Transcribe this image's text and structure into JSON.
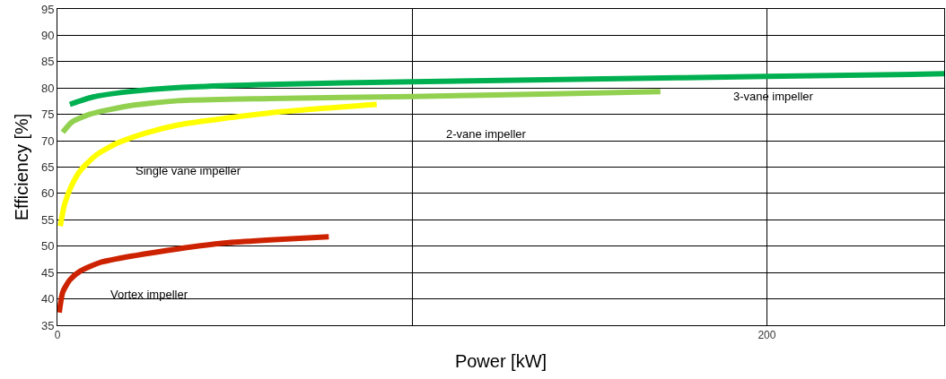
{
  "chart_data": {
    "type": "line",
    "xlabel": "Power [kW]",
    "ylabel": "Efficiency [%]",
    "xlim": [
      0,
      250
    ],
    "xticks": [
      0,
      {
        "value": 100,
        "label": null
      },
      200
    ],
    "ylim": [
      35,
      95
    ],
    "yticks": [
      35,
      40,
      45,
      50,
      55,
      60,
      65,
      70,
      75,
      80,
      85,
      90,
      95
    ],
    "grid": true,
    "legend": false,
    "marker": "none",
    "line_style": "solid",
    "series": [
      {
        "name": "3-vane impeller",
        "color": "#00b050",
        "x": [
          3.5,
          10,
          20,
          34,
          60,
          100,
          150,
          200,
          250
        ],
        "values": [
          76.9,
          78.3,
          79.3,
          80.1,
          80.7,
          81.2,
          81.7,
          82.2,
          82.7
        ]
      },
      {
        "name": "2-vane impeller",
        "color": "#92d050",
        "x": [
          1.5,
          4,
          9,
          20,
          34,
          60,
          100,
          140,
          170
        ],
        "values": [
          71.6,
          73.5,
          75,
          76.6,
          77.6,
          78,
          78.4,
          78.9,
          79.3
        ]
      },
      {
        "name": "Single vane impeller",
        "color": "#ffff00",
        "x": [
          0.8,
          2,
          4,
          6.5,
          11,
          16.7,
          25,
          34,
          60,
          90
        ],
        "values": [
          53.8,
          57.9,
          61.5,
          64.4,
          67.3,
          69.5,
          71.5,
          73,
          75.3,
          76.9
        ]
      },
      {
        "name": "Vortex impeller",
        "color": "#cc2200",
        "x": [
          0.5,
          1.5,
          3.5,
          6.5,
          12,
          21.7,
          34,
          47,
          60,
          76.5
        ],
        "values": [
          37.4,
          41.3,
          43.6,
          45.3,
          46.9,
          48.2,
          49.5,
          50.6,
          51.2,
          51.8
        ]
      }
    ]
  }
}
